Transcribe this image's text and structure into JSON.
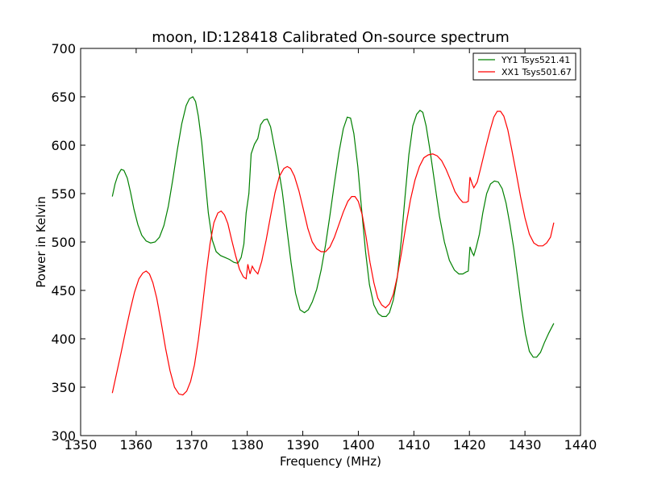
{
  "chart_data": {
    "type": "line",
    "title": "moon, ID:128418 Calibrated On-source spectrum",
    "xlabel": "Frequency (MHz)",
    "ylabel": "Power in Kelvin",
    "xlim": [
      1350,
      1440
    ],
    "ylim": [
      300,
      700
    ],
    "xticks": [
      1350,
      1360,
      1370,
      1380,
      1390,
      1400,
      1410,
      1420,
      1430,
      1440
    ],
    "yticks": [
      300,
      350,
      400,
      450,
      500,
      550,
      600,
      650,
      700
    ],
    "grid": false,
    "legend_position": "top-right",
    "series": [
      {
        "name": "YY1 Tsys521.41",
        "color": "#008000",
        "points": [
          [
            1355.7,
            547
          ],
          [
            1356.2,
            560
          ],
          [
            1356.7,
            569
          ],
          [
            1357.3,
            575
          ],
          [
            1357.8,
            574
          ],
          [
            1358.4,
            566
          ],
          [
            1359.0,
            551
          ],
          [
            1359.6,
            534
          ],
          [
            1360.3,
            518
          ],
          [
            1361.0,
            507
          ],
          [
            1361.8,
            501
          ],
          [
            1362.6,
            499
          ],
          [
            1363.4,
            500
          ],
          [
            1364.2,
            505
          ],
          [
            1365.0,
            517
          ],
          [
            1365.8,
            537
          ],
          [
            1366.6,
            565
          ],
          [
            1367.4,
            595
          ],
          [
            1368.2,
            622
          ],
          [
            1369.0,
            641
          ],
          [
            1369.6,
            648
          ],
          [
            1370.2,
            650
          ],
          [
            1370.7,
            645
          ],
          [
            1371.2,
            630
          ],
          [
            1371.8,
            603
          ],
          [
            1372.4,
            566
          ],
          [
            1373.0,
            530
          ],
          [
            1373.7,
            502
          ],
          [
            1374.4,
            490
          ],
          [
            1375.2,
            486
          ],
          [
            1376.0,
            484
          ],
          [
            1376.8,
            482
          ],
          [
            1377.6,
            479
          ],
          [
            1378.3,
            478
          ],
          [
            1378.9,
            484
          ],
          [
            1379.4,
            498
          ],
          [
            1379.8,
            530
          ],
          [
            1380.3,
            550
          ],
          [
            1380.7,
            591
          ],
          [
            1381.3,
            601
          ],
          [
            1381.9,
            607
          ],
          [
            1382.4,
            621
          ],
          [
            1383.0,
            626
          ],
          [
            1383.6,
            627
          ],
          [
            1384.2,
            619
          ],
          [
            1384.8,
            601
          ],
          [
            1385.5,
            580
          ],
          [
            1386.3,
            552
          ],
          [
            1387.1,
            515
          ],
          [
            1387.9,
            478
          ],
          [
            1388.7,
            447
          ],
          [
            1389.5,
            430
          ],
          [
            1390.3,
            427
          ],
          [
            1391.0,
            430
          ],
          [
            1391.7,
            438
          ],
          [
            1392.5,
            451
          ],
          [
            1393.3,
            471
          ],
          [
            1394.1,
            497
          ],
          [
            1394.9,
            528
          ],
          [
            1395.7,
            561
          ],
          [
            1396.5,
            592
          ],
          [
            1397.3,
            617
          ],
          [
            1398.0,
            629
          ],
          [
            1398.6,
            628
          ],
          [
            1399.2,
            612
          ],
          [
            1399.9,
            578
          ],
          [
            1400.6,
            533
          ],
          [
            1401.3,
            490
          ],
          [
            1402.0,
            456
          ],
          [
            1402.8,
            435
          ],
          [
            1403.6,
            426
          ],
          [
            1404.3,
            423
          ],
          [
            1405.0,
            423
          ],
          [
            1405.6,
            427
          ],
          [
            1406.3,
            440
          ],
          [
            1407.0,
            463
          ],
          [
            1407.7,
            500
          ],
          [
            1408.4,
            546
          ],
          [
            1409.1,
            590
          ],
          [
            1409.8,
            620
          ],
          [
            1410.5,
            632
          ],
          [
            1411.1,
            636
          ],
          [
            1411.6,
            634
          ],
          [
            1412.2,
            620
          ],
          [
            1412.9,
            595
          ],
          [
            1413.7,
            563
          ],
          [
            1414.6,
            527
          ],
          [
            1415.5,
            500
          ],
          [
            1416.4,
            481
          ],
          [
            1417.3,
            471
          ],
          [
            1418.1,
            467
          ],
          [
            1418.8,
            467
          ],
          [
            1419.4,
            469
          ],
          [
            1419.8,
            470
          ],
          [
            1420.1,
            495
          ],
          [
            1420.5,
            489
          ],
          [
            1420.8,
            486
          ],
          [
            1421.2,
            494
          ],
          [
            1421.8,
            508
          ],
          [
            1422.4,
            530
          ],
          [
            1423.1,
            550
          ],
          [
            1423.8,
            560
          ],
          [
            1424.5,
            563
          ],
          [
            1425.2,
            562
          ],
          [
            1425.9,
            555
          ],
          [
            1426.6,
            540
          ],
          [
            1427.3,
            518
          ],
          [
            1428.0,
            493
          ],
          [
            1428.7,
            462
          ],
          [
            1429.4,
            431
          ],
          [
            1430.1,
            405
          ],
          [
            1430.8,
            387
          ],
          [
            1431.5,
            381
          ],
          [
            1432.1,
            381
          ],
          [
            1432.8,
            386
          ],
          [
            1433.5,
            396
          ],
          [
            1434.3,
            406
          ],
          [
            1435.2,
            416
          ]
        ]
      },
      {
        "name": "XX1 Tsys501.67",
        "color": "#ff0000",
        "points": [
          [
            1355.7,
            344
          ],
          [
            1356.5,
            365
          ],
          [
            1357.3,
            386
          ],
          [
            1358.1,
            408
          ],
          [
            1358.9,
            429
          ],
          [
            1359.7,
            448
          ],
          [
            1360.5,
            462
          ],
          [
            1361.2,
            468
          ],
          [
            1361.8,
            470
          ],
          [
            1362.4,
            467
          ],
          [
            1363.0,
            458
          ],
          [
            1363.7,
            442
          ],
          [
            1364.5,
            417
          ],
          [
            1365.3,
            390
          ],
          [
            1366.1,
            367
          ],
          [
            1366.9,
            350
          ],
          [
            1367.7,
            343
          ],
          [
            1368.4,
            342
          ],
          [
            1369.1,
            346
          ],
          [
            1369.8,
            356
          ],
          [
            1370.5,
            373
          ],
          [
            1371.2,
            399
          ],
          [
            1371.9,
            432
          ],
          [
            1372.6,
            467
          ],
          [
            1373.3,
            498
          ],
          [
            1374.0,
            520
          ],
          [
            1374.7,
            530
          ],
          [
            1375.3,
            532
          ],
          [
            1375.9,
            528
          ],
          [
            1376.5,
            519
          ],
          [
            1377.2,
            502
          ],
          [
            1377.9,
            486
          ],
          [
            1378.6,
            472
          ],
          [
            1379.3,
            464
          ],
          [
            1379.8,
            462
          ],
          [
            1380.1,
            477
          ],
          [
            1380.5,
            467
          ],
          [
            1380.9,
            475
          ],
          [
            1381.3,
            471
          ],
          [
            1381.9,
            467
          ],
          [
            1382.6,
            480
          ],
          [
            1383.4,
            502
          ],
          [
            1384.2,
            527
          ],
          [
            1385.0,
            551
          ],
          [
            1385.8,
            568
          ],
          [
            1386.6,
            576
          ],
          [
            1387.2,
            578
          ],
          [
            1387.8,
            576
          ],
          [
            1388.5,
            568
          ],
          [
            1389.3,
            553
          ],
          [
            1390.1,
            534
          ],
          [
            1390.9,
            514
          ],
          [
            1391.7,
            500
          ],
          [
            1392.5,
            493
          ],
          [
            1393.3,
            490
          ],
          [
            1394.1,
            490
          ],
          [
            1394.9,
            495
          ],
          [
            1395.7,
            505
          ],
          [
            1396.5,
            518
          ],
          [
            1397.3,
            531
          ],
          [
            1398.1,
            542
          ],
          [
            1398.8,
            547
          ],
          [
            1399.4,
            547
          ],
          [
            1400.0,
            542
          ],
          [
            1400.7,
            528
          ],
          [
            1401.4,
            505
          ],
          [
            1402.1,
            479
          ],
          [
            1402.8,
            458
          ],
          [
            1403.5,
            442
          ],
          [
            1404.2,
            435
          ],
          [
            1404.9,
            432
          ],
          [
            1405.6,
            436
          ],
          [
            1406.3,
            446
          ],
          [
            1407.0,
            464
          ],
          [
            1407.8,
            490
          ],
          [
            1408.6,
            518
          ],
          [
            1409.4,
            544
          ],
          [
            1410.2,
            564
          ],
          [
            1411.0,
            578
          ],
          [
            1411.8,
            587
          ],
          [
            1412.6,
            590
          ],
          [
            1413.4,
            591
          ],
          [
            1414.2,
            589
          ],
          [
            1415.0,
            584
          ],
          [
            1415.8,
            575
          ],
          [
            1416.6,
            564
          ],
          [
            1417.4,
            552
          ],
          [
            1418.2,
            545
          ],
          [
            1418.8,
            541
          ],
          [
            1419.4,
            541
          ],
          [
            1419.8,
            542
          ],
          [
            1420.1,
            567
          ],
          [
            1420.5,
            560
          ],
          [
            1420.8,
            556
          ],
          [
            1421.4,
            562
          ],
          [
            1422.1,
            578
          ],
          [
            1422.9,
            597
          ],
          [
            1423.7,
            615
          ],
          [
            1424.4,
            629
          ],
          [
            1425.0,
            635
          ],
          [
            1425.6,
            635
          ],
          [
            1426.2,
            630
          ],
          [
            1426.9,
            616
          ],
          [
            1427.6,
            596
          ],
          [
            1428.4,
            572
          ],
          [
            1429.2,
            547
          ],
          [
            1430.0,
            525
          ],
          [
            1430.8,
            508
          ],
          [
            1431.6,
            499
          ],
          [
            1432.4,
            496
          ],
          [
            1433.2,
            496
          ],
          [
            1433.9,
            499
          ],
          [
            1434.6,
            505
          ],
          [
            1435.2,
            520
          ]
        ]
      }
    ]
  }
}
